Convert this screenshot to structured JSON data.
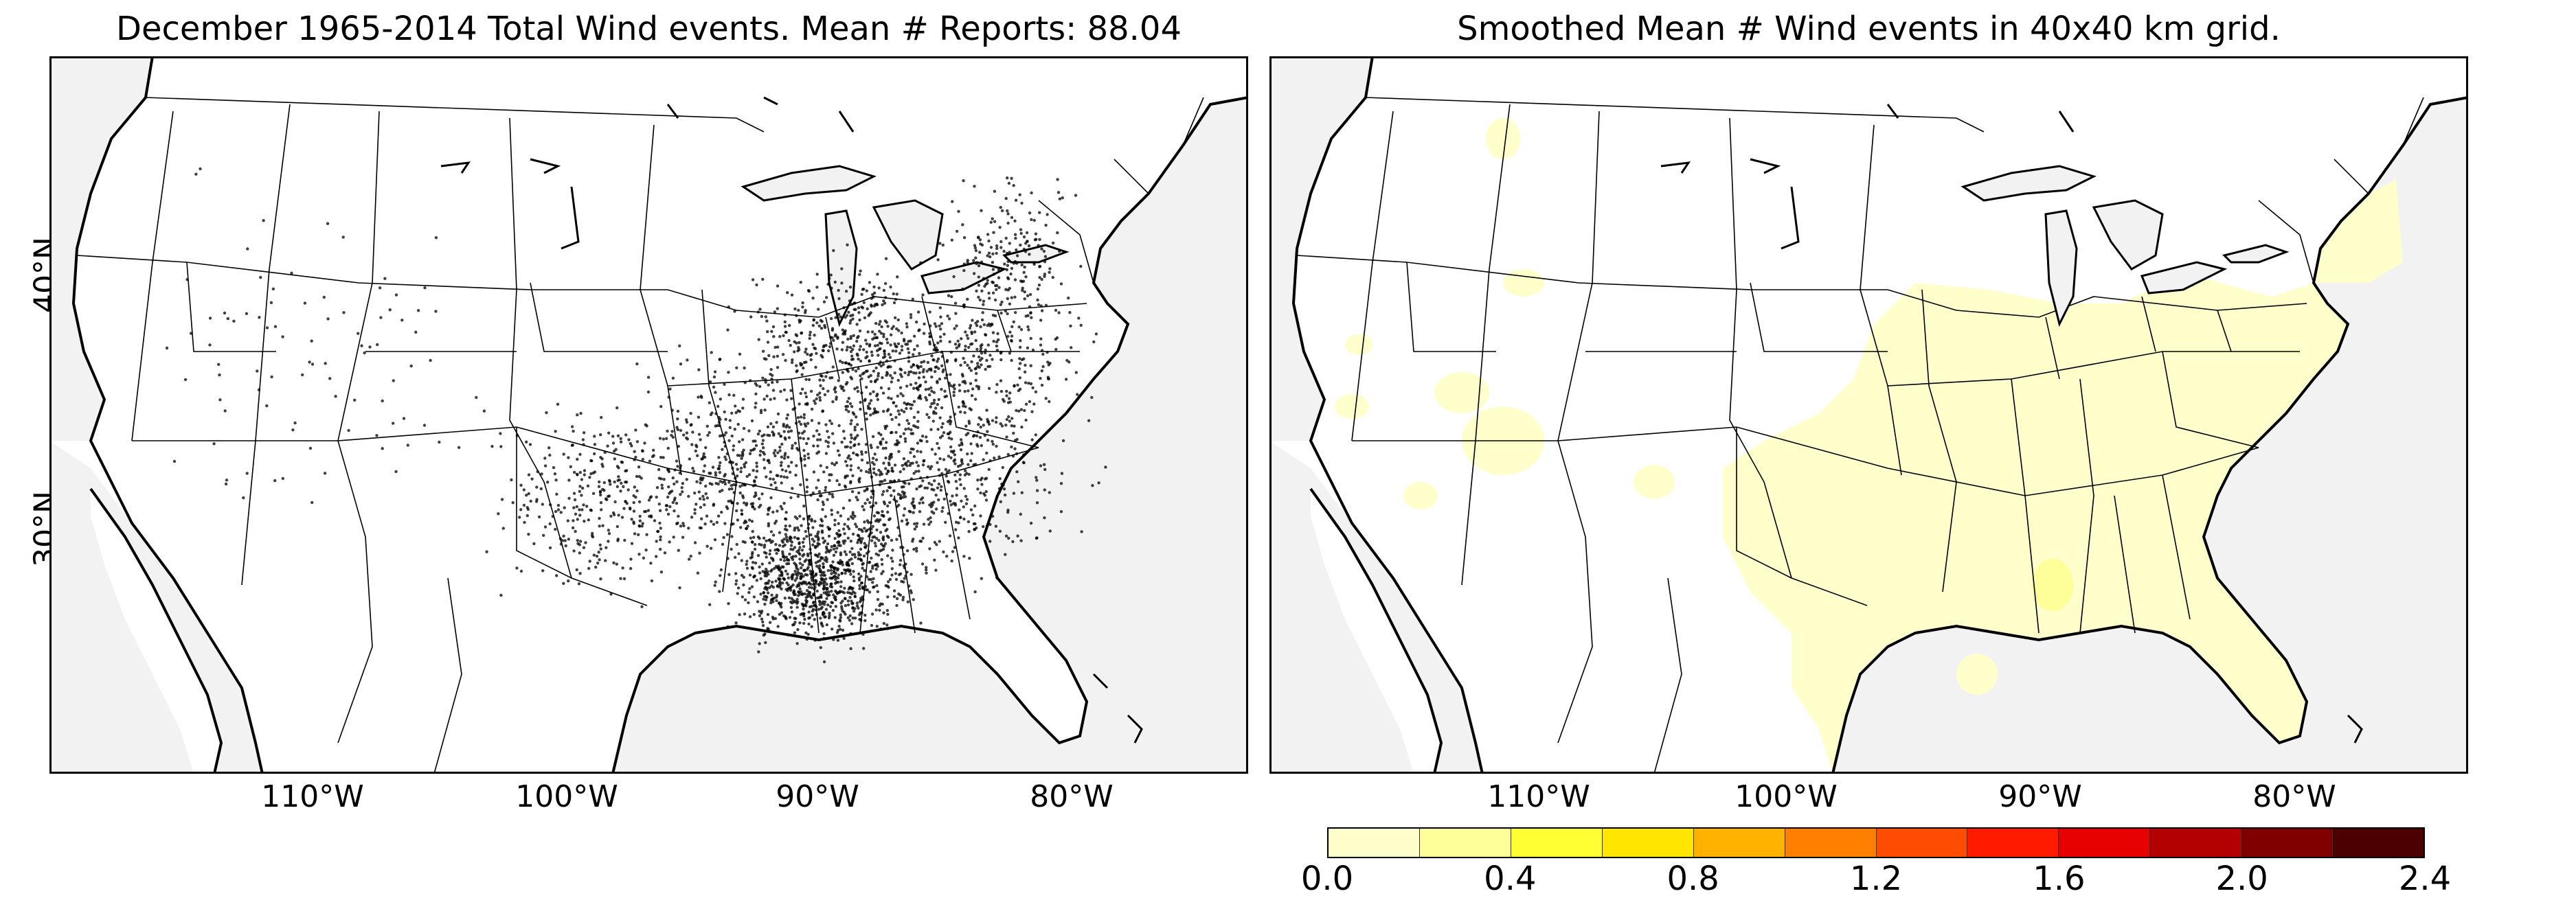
{
  "left_panel": {
    "title": "December 1965-2014 Total Wind events. Mean # Reports: 88.04",
    "content": "scatter of wind event reports"
  },
  "right_panel": {
    "title": "Smoothed Mean # Wind events in 40x40 km grid.",
    "content": "smoothed density field"
  },
  "axes": {
    "lat_labels": [
      "40°N",
      "30°N"
    ],
    "lon_labels_left": [
      "110°W",
      "100°W",
      "90°W",
      "80°W"
    ],
    "lon_labels_right": [
      "110°W",
      "100°W",
      "90°W",
      "80°W"
    ]
  },
  "colorbar": {
    "ticks": [
      "0.0",
      "0.4",
      "0.8",
      "1.2",
      "1.6",
      "2.0",
      "2.4"
    ],
    "colors": [
      "#ffffcc",
      "#ffff99",
      "#ffff33",
      "#ffe600",
      "#ffb300",
      "#ff8000",
      "#ff4d00",
      "#ff1a00",
      "#e60000",
      "#b30000",
      "#800000",
      "#4d0000"
    ]
  },
  "map_colors": {
    "ocean": "#f2f2f2",
    "land": "#ffffff",
    "lakes": "#f2f2f2",
    "density_low": "#ffffcc",
    "density_mid": "#ffff99",
    "points": "#000000"
  }
}
